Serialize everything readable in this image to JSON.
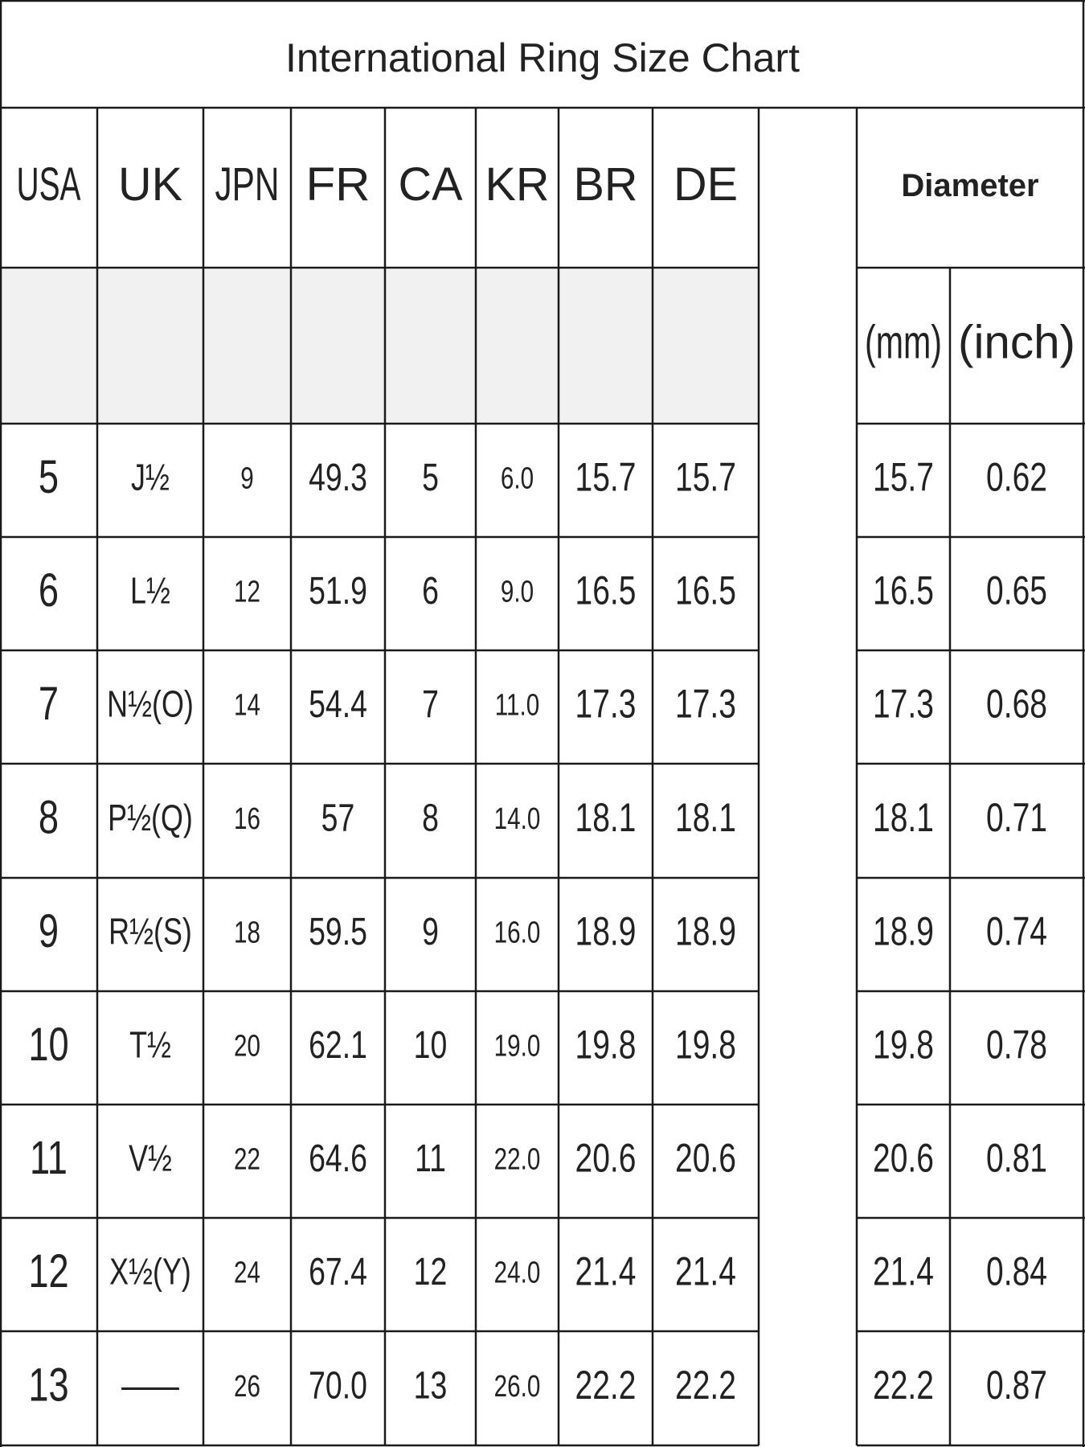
{
  "header": {
    "title": "International Ring Size Chart"
  },
  "table": {
    "columns": [
      "USA",
      "UK",
      "JPN",
      "FR",
      "CA",
      "KR",
      "BR",
      "DE"
    ],
    "diameter_header": "Diameter",
    "diameter_units": [
      "(mm)",
      "(inch)"
    ],
    "rows": [
      [
        "5",
        "J½",
        "9",
        "49.3",
        "5",
        "6.0",
        "15.7",
        "15.7",
        "15.7",
        "0.62"
      ],
      [
        "6",
        "L½",
        "12",
        "51.9",
        "6",
        "9.0",
        "16.5",
        "16.5",
        "16.5",
        "0.65"
      ],
      [
        "7",
        "N½(O)",
        "14",
        "54.4",
        "7",
        "11.0",
        "17.3",
        "17.3",
        "17.3",
        "0.68"
      ],
      [
        "8",
        "P½(Q)",
        "16",
        "57",
        "8",
        "14.0",
        "18.1",
        "18.1",
        "18.1",
        "0.71"
      ],
      [
        "9",
        "R½(S)",
        "18",
        "59.5",
        "9",
        "16.0",
        "18.9",
        "18.9",
        "18.9",
        "0.74"
      ],
      [
        "10",
        "T½",
        "20",
        "62.1",
        "10",
        "19.0",
        "19.8",
        "19.8",
        "19.8",
        "0.78"
      ],
      [
        "11",
        "V½",
        "22",
        "64.6",
        "11",
        "22.0",
        "20.6",
        "20.6",
        "20.6",
        "0.81"
      ],
      [
        "12",
        "X½(Y)",
        "24",
        "67.4",
        "12",
        "24.0",
        "21.4",
        "21.4",
        "21.4",
        "0.84"
      ],
      [
        "13",
        "——",
        "26",
        "70.0",
        "13",
        "26.0",
        "22.2",
        "22.2",
        "22.2",
        "0.87"
      ]
    ]
  }
}
